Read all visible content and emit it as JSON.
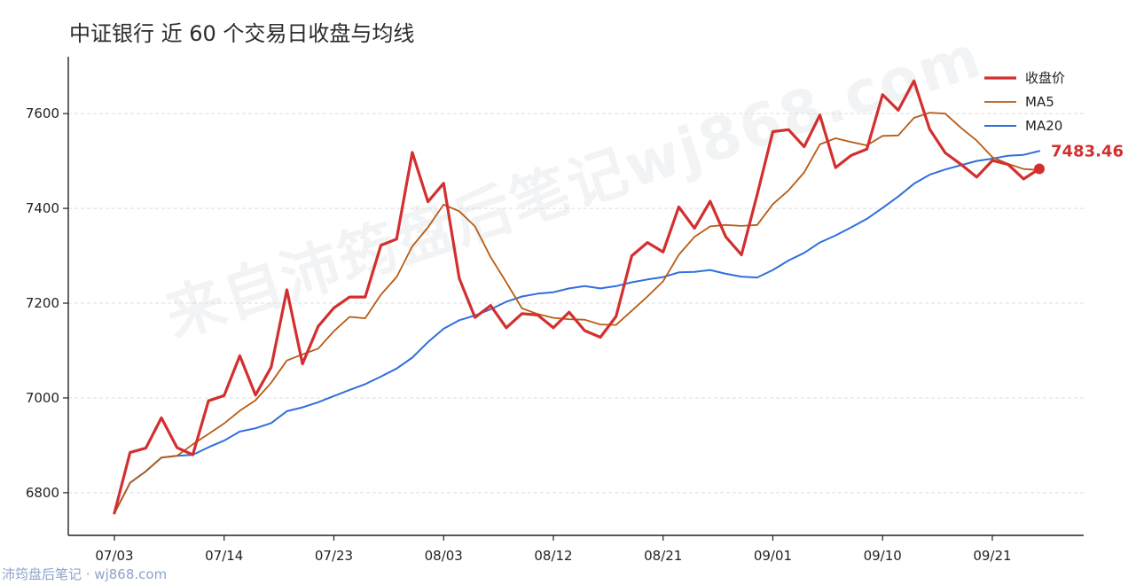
{
  "title": "中证银行 近 60 个交易日收盘与均线",
  "watermark": "来自沛筠盘后笔记wj868.com",
  "footer": "沛筠盘后笔记 · wj868.com",
  "colors": {
    "close": "#d32f2f",
    "ma5": "#b85c14",
    "ma20": "#2f6fdc",
    "grid": "#dddddd"
  },
  "chart_data": {
    "type": "line",
    "title": "中证银行 近 60 个交易日收盘与均线",
    "xlabel": "",
    "ylabel": "",
    "ylim": [
      6710,
      7720
    ],
    "yticks": [
      6800,
      7000,
      7200,
      7400,
      7600
    ],
    "xtick_labels": [
      "07/03",
      "07/14",
      "07/23",
      "08/03",
      "08/12",
      "08/21",
      "09/01",
      "09/10",
      "09/21"
    ],
    "xtick_indices": [
      0,
      7,
      14,
      21,
      28,
      35,
      42,
      49,
      56
    ],
    "grid": "horizontal-dashed",
    "legend_position": "top-right",
    "last_value_label": "7483.46",
    "series": [
      {
        "name": "收盘价",
        "values": [
          6757,
          6885,
          6894,
          6958,
          6895,
          6880,
          6994,
          7005,
          7089,
          7006,
          7065,
          7228,
          7072,
          7151,
          7190,
          7213,
          7213,
          7322,
          7335,
          7518,
          7414,
          7453,
          7252,
          7170,
          7195,
          7148,
          7178,
          7175,
          7148,
          7181,
          7142,
          7128,
          7172,
          7300,
          7328,
          7308,
          7403,
          7358,
          7415,
          7340,
          7302,
          7429,
          7562,
          7566,
          7530,
          7597,
          7486,
          7512,
          7525,
          7640,
          7607,
          7669,
          7567,
          7517,
          7493,
          7466,
          7501,
          7493,
          7462,
          7483.46
        ]
      },
      {
        "name": "MA5",
        "values": [
          6757,
          6821,
          6845,
          6874,
          6878,
          6902,
          6924,
          6946,
          6973,
          6995,
          7032,
          7079,
          7092,
          7104,
          7141,
          7171,
          7168,
          7218,
          7255,
          7320,
          7360,
          7408,
          7394,
          7362,
          7297,
          7244,
          7189,
          7177,
          7169,
          7166,
          7165,
          7155,
          7154,
          7184,
          7214,
          7246,
          7302,
          7340,
          7362,
          7365,
          7363,
          7365,
          7409,
          7438,
          7476,
          7535,
          7548,
          7540,
          7533,
          7553,
          7554,
          7591,
          7602,
          7600,
          7570,
          7543,
          7508,
          7494,
          7483,
          7481
        ]
      },
      {
        "name": "MA20",
        "values": [
          6757,
          6821,
          6845,
          6874,
          6878,
          6880,
          6896,
          6910,
          6929,
          6936,
          6947,
          6972,
          6980,
          6991,
          7004,
          7017,
          7029,
          7045,
          7062,
          7085,
          7118,
          7146,
          7164,
          7174,
          7187,
          7203,
          7214,
          7220,
          7223,
          7231,
          7236,
          7231,
          7236,
          7244,
          7250,
          7255,
          7265,
          7266,
          7270,
          7262,
          7256,
          7254,
          7270,
          7290,
          7306,
          7328,
          7343,
          7360,
          7378,
          7401,
          7425,
          7452,
          7471,
          7482,
          7491,
          7500,
          7505,
          7511,
          7513,
          7521
        ]
      }
    ]
  }
}
